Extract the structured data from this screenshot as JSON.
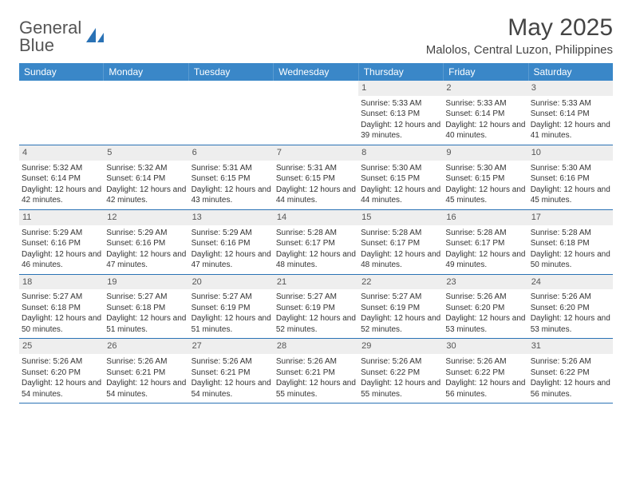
{
  "brand": {
    "word1": "General",
    "word2": "Blue"
  },
  "title": "May 2025",
  "location": "Malolos, Central Luzon, Philippines",
  "header_bg": "#3a87c8",
  "rule_color": "#2a72b5",
  "daynum_bg": "#eeeeee",
  "text_color": "#333333",
  "weekdays": [
    "Sunday",
    "Monday",
    "Tuesday",
    "Wednesday",
    "Thursday",
    "Friday",
    "Saturday"
  ],
  "weeks": [
    [
      {
        "n": "",
        "lines": []
      },
      {
        "n": "",
        "lines": []
      },
      {
        "n": "",
        "lines": []
      },
      {
        "n": "",
        "lines": []
      },
      {
        "n": "1",
        "lines": [
          "Sunrise: 5:33 AM",
          "Sunset: 6:13 PM",
          "Daylight: 12 hours and 39 minutes."
        ]
      },
      {
        "n": "2",
        "lines": [
          "Sunrise: 5:33 AM",
          "Sunset: 6:14 PM",
          "Daylight: 12 hours and 40 minutes."
        ]
      },
      {
        "n": "3",
        "lines": [
          "Sunrise: 5:33 AM",
          "Sunset: 6:14 PM",
          "Daylight: 12 hours and 41 minutes."
        ]
      }
    ],
    [
      {
        "n": "4",
        "lines": [
          "Sunrise: 5:32 AM",
          "Sunset: 6:14 PM",
          "Daylight: 12 hours and 42 minutes."
        ]
      },
      {
        "n": "5",
        "lines": [
          "Sunrise: 5:32 AM",
          "Sunset: 6:14 PM",
          "Daylight: 12 hours and 42 minutes."
        ]
      },
      {
        "n": "6",
        "lines": [
          "Sunrise: 5:31 AM",
          "Sunset: 6:15 PM",
          "Daylight: 12 hours and 43 minutes."
        ]
      },
      {
        "n": "7",
        "lines": [
          "Sunrise: 5:31 AM",
          "Sunset: 6:15 PM",
          "Daylight: 12 hours and 44 minutes."
        ]
      },
      {
        "n": "8",
        "lines": [
          "Sunrise: 5:30 AM",
          "Sunset: 6:15 PM",
          "Daylight: 12 hours and 44 minutes."
        ]
      },
      {
        "n": "9",
        "lines": [
          "Sunrise: 5:30 AM",
          "Sunset: 6:15 PM",
          "Daylight: 12 hours and 45 minutes."
        ]
      },
      {
        "n": "10",
        "lines": [
          "Sunrise: 5:30 AM",
          "Sunset: 6:16 PM",
          "Daylight: 12 hours and 45 minutes."
        ]
      }
    ],
    [
      {
        "n": "11",
        "lines": [
          "Sunrise: 5:29 AM",
          "Sunset: 6:16 PM",
          "Daylight: 12 hours and 46 minutes."
        ]
      },
      {
        "n": "12",
        "lines": [
          "Sunrise: 5:29 AM",
          "Sunset: 6:16 PM",
          "Daylight: 12 hours and 47 minutes."
        ]
      },
      {
        "n": "13",
        "lines": [
          "Sunrise: 5:29 AM",
          "Sunset: 6:16 PM",
          "Daylight: 12 hours and 47 minutes."
        ]
      },
      {
        "n": "14",
        "lines": [
          "Sunrise: 5:28 AM",
          "Sunset: 6:17 PM",
          "Daylight: 12 hours and 48 minutes."
        ]
      },
      {
        "n": "15",
        "lines": [
          "Sunrise: 5:28 AM",
          "Sunset: 6:17 PM",
          "Daylight: 12 hours and 48 minutes."
        ]
      },
      {
        "n": "16",
        "lines": [
          "Sunrise: 5:28 AM",
          "Sunset: 6:17 PM",
          "Daylight: 12 hours and 49 minutes."
        ]
      },
      {
        "n": "17",
        "lines": [
          "Sunrise: 5:28 AM",
          "Sunset: 6:18 PM",
          "Daylight: 12 hours and 50 minutes."
        ]
      }
    ],
    [
      {
        "n": "18",
        "lines": [
          "Sunrise: 5:27 AM",
          "Sunset: 6:18 PM",
          "Daylight: 12 hours and 50 minutes."
        ]
      },
      {
        "n": "19",
        "lines": [
          "Sunrise: 5:27 AM",
          "Sunset: 6:18 PM",
          "Daylight: 12 hours and 51 minutes."
        ]
      },
      {
        "n": "20",
        "lines": [
          "Sunrise: 5:27 AM",
          "Sunset: 6:19 PM",
          "Daylight: 12 hours and 51 minutes."
        ]
      },
      {
        "n": "21",
        "lines": [
          "Sunrise: 5:27 AM",
          "Sunset: 6:19 PM",
          "Daylight: 12 hours and 52 minutes."
        ]
      },
      {
        "n": "22",
        "lines": [
          "Sunrise: 5:27 AM",
          "Sunset: 6:19 PM",
          "Daylight: 12 hours and 52 minutes."
        ]
      },
      {
        "n": "23",
        "lines": [
          "Sunrise: 5:26 AM",
          "Sunset: 6:20 PM",
          "Daylight: 12 hours and 53 minutes."
        ]
      },
      {
        "n": "24",
        "lines": [
          "Sunrise: 5:26 AM",
          "Sunset: 6:20 PM",
          "Daylight: 12 hours and 53 minutes."
        ]
      }
    ],
    [
      {
        "n": "25",
        "lines": [
          "Sunrise: 5:26 AM",
          "Sunset: 6:20 PM",
          "Daylight: 12 hours and 54 minutes."
        ]
      },
      {
        "n": "26",
        "lines": [
          "Sunrise: 5:26 AM",
          "Sunset: 6:21 PM",
          "Daylight: 12 hours and 54 minutes."
        ]
      },
      {
        "n": "27",
        "lines": [
          "Sunrise: 5:26 AM",
          "Sunset: 6:21 PM",
          "Daylight: 12 hours and 54 minutes."
        ]
      },
      {
        "n": "28",
        "lines": [
          "Sunrise: 5:26 AM",
          "Sunset: 6:21 PM",
          "Daylight: 12 hours and 55 minutes."
        ]
      },
      {
        "n": "29",
        "lines": [
          "Sunrise: 5:26 AM",
          "Sunset: 6:22 PM",
          "Daylight: 12 hours and 55 minutes."
        ]
      },
      {
        "n": "30",
        "lines": [
          "Sunrise: 5:26 AM",
          "Sunset: 6:22 PM",
          "Daylight: 12 hours and 56 minutes."
        ]
      },
      {
        "n": "31",
        "lines": [
          "Sunrise: 5:26 AM",
          "Sunset: 6:22 PM",
          "Daylight: 12 hours and 56 minutes."
        ]
      }
    ]
  ]
}
